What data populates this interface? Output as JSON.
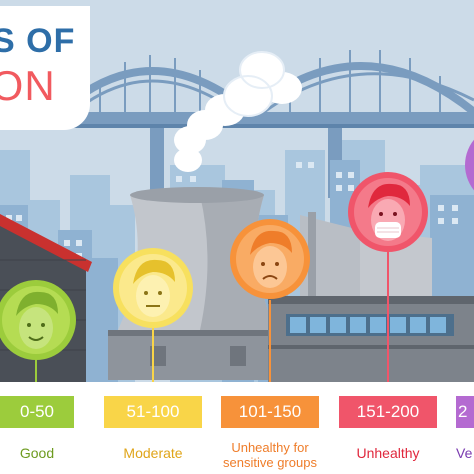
{
  "title": {
    "line1": "S OF",
    "line2": "ION"
  },
  "categories": [
    {
      "range": "0-50",
      "label": "Good",
      "level": "good",
      "color": "#9ccc3c",
      "text_color": "#6d9b1f"
    },
    {
      "range": "51-100",
      "label": "Moderate",
      "level": "moderate",
      "color": "#f9d548",
      "text_color": "#e0a51a"
    },
    {
      "range": "101-150",
      "label": "Unhealthy for sensitive groups",
      "level": "unhealthy-sensitive",
      "color": "#f7923a",
      "text_color": "#ef7d2a"
    },
    {
      "range": "151-200",
      "label": "Unhealthy",
      "level": "unhealthy",
      "color": "#f0556a",
      "text_color": "#e0283d"
    },
    {
      "range": "2",
      "label": "Ve",
      "level": "very-unhealthy",
      "color": "#b46ad1",
      "text_color": "#7a3bb0"
    }
  ],
  "colors": {
    "sky": "#ccdbe8",
    "city_back": "#a9c6de",
    "bridge": "#7a9cbf",
    "title_blue": "#2e6ea8",
    "title_red": "#f15a5f"
  },
  "icons": [
    "face-icon",
    "mask-face-icon",
    "smoke-icon",
    "cooling-tower-icon",
    "factory-icon",
    "bridge-icon"
  ]
}
